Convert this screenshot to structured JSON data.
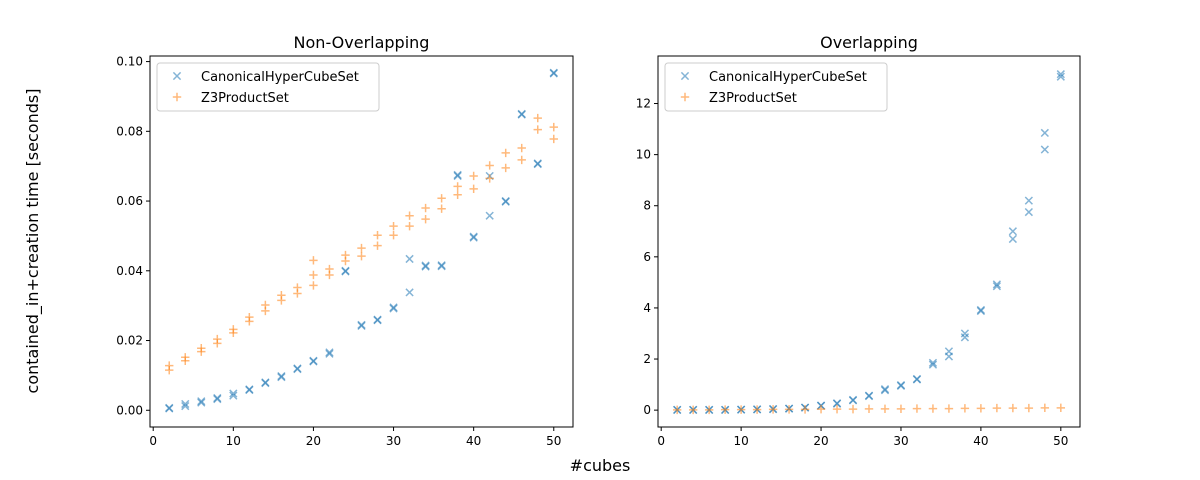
{
  "figure": {
    "ylabel": "contained_in+creation time [seconds]",
    "xlabel": "#cubes"
  },
  "colors": {
    "canonical": "#1f77b4",
    "z3": "#ff7f0e"
  },
  "chart_data": [
    {
      "type": "scatter",
      "title": "Non-Overlapping",
      "xlim": [
        -0.4,
        52.4
      ],
      "ylim": [
        -0.0048,
        0.1016
      ],
      "xticks": [
        0,
        10,
        20,
        30,
        40,
        50
      ],
      "xtick_labels": [
        "0",
        "10",
        "20",
        "30",
        "40",
        "50"
      ],
      "yticks": [
        0,
        0.02,
        0.04,
        0.06,
        0.08,
        0.1
      ],
      "ytick_labels": [
        "0.00",
        "0.02",
        "0.04",
        "0.06",
        "0.08",
        "0.10"
      ],
      "legend": {
        "location": "upper left",
        "entries": [
          "CanonicalHyperCubeSet",
          "Z3ProductSet"
        ]
      },
      "series": [
        {
          "name": "CanonicalHyperCubeSet",
          "marker": "x",
          "points": [
            [
              2,
              0.0005
            ],
            [
              2,
              0.0007
            ],
            [
              4,
              0.0012
            ],
            [
              4,
              0.0018
            ],
            [
              6,
              0.0022
            ],
            [
              6,
              0.0026
            ],
            [
              8,
              0.0032
            ],
            [
              8,
              0.0035
            ],
            [
              10,
              0.0042
            ],
            [
              10,
              0.0048
            ],
            [
              12,
              0.0058
            ],
            [
              12,
              0.006
            ],
            [
              14,
              0.0078
            ],
            [
              14,
              0.008
            ],
            [
              16,
              0.0095
            ],
            [
              16,
              0.0098
            ],
            [
              18,
              0.0118
            ],
            [
              18,
              0.012
            ],
            [
              20,
              0.014
            ],
            [
              20,
              0.0142
            ],
            [
              22,
              0.0162
            ],
            [
              22,
              0.0166
            ],
            [
              24,
              0.0398
            ],
            [
              24,
              0.04
            ],
            [
              26,
              0.0242
            ],
            [
              26,
              0.0245
            ],
            [
              28,
              0.0258
            ],
            [
              28,
              0.026
            ],
            [
              30,
              0.0292
            ],
            [
              30,
              0.0295
            ],
            [
              32,
              0.0338
            ],
            [
              32,
              0.0434
            ],
            [
              34,
              0.0412
            ],
            [
              34,
              0.0415
            ],
            [
              36,
              0.0413
            ],
            [
              36,
              0.0416
            ],
            [
              38,
              0.0672
            ],
            [
              38,
              0.0675
            ],
            [
              40,
              0.0495
            ],
            [
              40,
              0.0498
            ],
            [
              42,
              0.0558
            ],
            [
              42,
              0.0672
            ],
            [
              44,
              0.0598
            ],
            [
              44,
              0.06
            ],
            [
              46,
              0.0848
            ],
            [
              46,
              0.085
            ],
            [
              48,
              0.0706
            ],
            [
              48,
              0.0708
            ],
            [
              50,
              0.0966
            ],
            [
              50,
              0.0968
            ]
          ]
        },
        {
          "name": "Z3ProductSet",
          "marker": "+",
          "points": [
            [
              2,
              0.0115
            ],
            [
              2,
              0.0128
            ],
            [
              4,
              0.0142
            ],
            [
              4,
              0.0152
            ],
            [
              6,
              0.0168
            ],
            [
              6,
              0.0178
            ],
            [
              8,
              0.0192
            ],
            [
              8,
              0.0204
            ],
            [
              10,
              0.0222
            ],
            [
              10,
              0.0232
            ],
            [
              12,
              0.0255
            ],
            [
              12,
              0.0267
            ],
            [
              14,
              0.0285
            ],
            [
              14,
              0.0302
            ],
            [
              16,
              0.0315
            ],
            [
              16,
              0.033
            ],
            [
              18,
              0.0335
            ],
            [
              18,
              0.0352
            ],
            [
              20,
              0.0358
            ],
            [
              20,
              0.0388
            ],
            [
              20,
              0.043
            ],
            [
              22,
              0.0388
            ],
            [
              22,
              0.0405
            ],
            [
              24,
              0.0428
            ],
            [
              24,
              0.0445
            ],
            [
              26,
              0.0442
            ],
            [
              26,
              0.0465
            ],
            [
              28,
              0.0472
            ],
            [
              28,
              0.0502
            ],
            [
              30,
              0.0502
            ],
            [
              30,
              0.0528
            ],
            [
              32,
              0.0528
            ],
            [
              32,
              0.0558
            ],
            [
              34,
              0.0548
            ],
            [
              34,
              0.058
            ],
            [
              36,
              0.0578
            ],
            [
              36,
              0.0608
            ],
            [
              38,
              0.0618
            ],
            [
              38,
              0.0642
            ],
            [
              40,
              0.0635
            ],
            [
              40,
              0.0672
            ],
            [
              42,
              0.0665
            ],
            [
              42,
              0.0702
            ],
            [
              44,
              0.0695
            ],
            [
              44,
              0.0738
            ],
            [
              46,
              0.0718
            ],
            [
              46,
              0.0752
            ],
            [
              48,
              0.0805
            ],
            [
              48,
              0.0838
            ],
            [
              50,
              0.0778
            ],
            [
              50,
              0.0812
            ]
          ]
        }
      ]
    },
    {
      "type": "scatter",
      "title": "Overlapping",
      "xlim": [
        -0.4,
        52.4
      ],
      "ylim": [
        -0.66,
        13.86
      ],
      "xticks": [
        0,
        10,
        20,
        30,
        40,
        50
      ],
      "xtick_labels": [
        "0",
        "10",
        "20",
        "30",
        "40",
        "50"
      ],
      "yticks": [
        0,
        2,
        4,
        6,
        8,
        10,
        12
      ],
      "ytick_labels": [
        "0",
        "2",
        "4",
        "6",
        "8",
        "10",
        "12"
      ],
      "legend": {
        "location": "upper left",
        "entries": [
          "CanonicalHyperCubeSet",
          "Z3ProductSet"
        ]
      },
      "series": [
        {
          "name": "CanonicalHyperCubeSet",
          "marker": "x",
          "points": [
            [
              2,
              0.01
            ],
            [
              2,
              0.01
            ],
            [
              4,
              0.01
            ],
            [
              4,
              0.01
            ],
            [
              6,
              0.01
            ],
            [
              6,
              0.01
            ],
            [
              8,
              0.01
            ],
            [
              8,
              0.01
            ],
            [
              10,
              0.02
            ],
            [
              10,
              0.02
            ],
            [
              12,
              0.03
            ],
            [
              12,
              0.03
            ],
            [
              14,
              0.04
            ],
            [
              14,
              0.04
            ],
            [
              16,
              0.06
            ],
            [
              16,
              0.06
            ],
            [
              18,
              0.1
            ],
            [
              18,
              0.1
            ],
            [
              20,
              0.17
            ],
            [
              20,
              0.18
            ],
            [
              22,
              0.25
            ],
            [
              22,
              0.27
            ],
            [
              24,
              0.38
            ],
            [
              24,
              0.4
            ],
            [
              26,
              0.55
            ],
            [
              26,
              0.57
            ],
            [
              28,
              0.78
            ],
            [
              28,
              0.82
            ],
            [
              30,
              0.95
            ],
            [
              30,
              0.98
            ],
            [
              32,
              1.2
            ],
            [
              32,
              1.22
            ],
            [
              34,
              1.78
            ],
            [
              34,
              1.85
            ],
            [
              36,
              2.1
            ],
            [
              36,
              2.3
            ],
            [
              38,
              2.85
            ],
            [
              38,
              3.0
            ],
            [
              40,
              3.88
            ],
            [
              40,
              3.92
            ],
            [
              42,
              4.85
            ],
            [
              42,
              4.92
            ],
            [
              44,
              6.7
            ],
            [
              44,
              7.0
            ],
            [
              46,
              7.75
            ],
            [
              46,
              8.2
            ],
            [
              48,
              10.2
            ],
            [
              48,
              10.85
            ],
            [
              50,
              13.05
            ],
            [
              50,
              13.15
            ]
          ]
        },
        {
          "name": "Z3ProductSet",
          "marker": "+",
          "points": [
            [
              2,
              0.01
            ],
            [
              4,
              0.01
            ],
            [
              6,
              0.01
            ],
            [
              8,
              0.02
            ],
            [
              10,
              0.02
            ],
            [
              12,
              0.02
            ],
            [
              14,
              0.03
            ],
            [
              16,
              0.03
            ],
            [
              18,
              0.03
            ],
            [
              20,
              0.04
            ],
            [
              22,
              0.04
            ],
            [
              24,
              0.04
            ],
            [
              26,
              0.05
            ],
            [
              28,
              0.05
            ],
            [
              30,
              0.05
            ],
            [
              32,
              0.06
            ],
            [
              34,
              0.06
            ],
            [
              36,
              0.06
            ],
            [
              38,
              0.07
            ],
            [
              40,
              0.07
            ],
            [
              42,
              0.08
            ],
            [
              44,
              0.08
            ],
            [
              46,
              0.08
            ],
            [
              48,
              0.09
            ],
            [
              50,
              0.09
            ]
          ]
        }
      ]
    }
  ]
}
